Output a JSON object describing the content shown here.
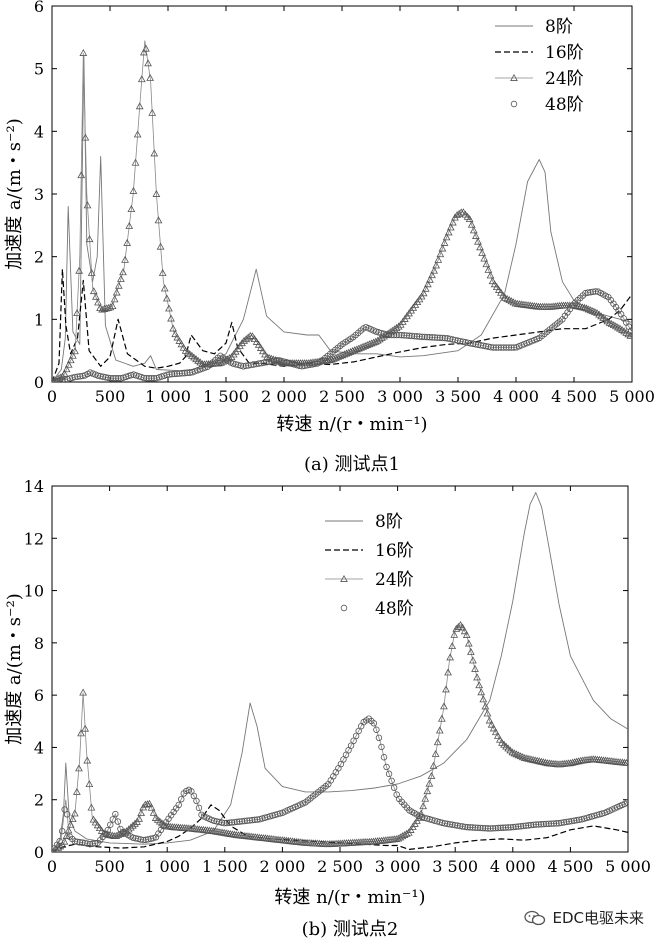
{
  "chart_data": [
    {
      "type": "line",
      "caption": "(a) 测试点1",
      "xlabel": "转速 n/(r・min⁻¹)",
      "ylabel": "加速度 a/(m・s⁻²)",
      "xlim": [
        0,
        5000
      ],
      "ylim": [
        0,
        6
      ],
      "xticks": [
        0,
        500,
        1000,
        1500,
        2000,
        2500,
        3000,
        3500,
        4000,
        4500,
        5000
      ],
      "xtick_labels": [
        "0",
        "500",
        "1 000",
        "1 500",
        "2 000",
        "2 500",
        "3 000",
        "3 500",
        "4 000",
        "4 500",
        "5 000"
      ],
      "yticks": [
        0,
        1,
        2,
        3,
        4,
        5,
        6
      ],
      "ytick_labels": [
        "0",
        "1",
        "2",
        "3",
        "4",
        "5",
        "6"
      ],
      "legend_position": "top-right",
      "series": [
        {
          "name": "8阶",
          "style": "solid",
          "x": [
            0,
            80,
            115,
            140,
            180,
            240,
            275,
            300,
            350,
            390,
            420,
            460,
            550,
            700,
            800,
            850,
            900,
            1100,
            1300,
            1500,
            1650,
            1760,
            1850,
            2000,
            2200,
            2300,
            2400,
            2600,
            2800,
            3000,
            3200,
            3500,
            3700,
            3900,
            4000,
            4100,
            4200,
            4250,
            4300,
            4400,
            4500,
            4700,
            4900,
            5000
          ],
          "y": [
            0,
            0.2,
            0.7,
            2.8,
            0.8,
            0.6,
            5.2,
            2.2,
            1.6,
            2.0,
            3.6,
            0.9,
            0.35,
            0.25,
            0.3,
            0.42,
            0.2,
            0.18,
            0.22,
            0.45,
            1.0,
            1.8,
            1.05,
            0.8,
            0.75,
            0.75,
            0.5,
            0.45,
            0.45,
            0.4,
            0.42,
            0.5,
            0.75,
            1.4,
            2.2,
            3.2,
            3.55,
            3.35,
            2.4,
            1.6,
            1.3,
            1.1,
            1.0,
            0.95
          ]
        },
        {
          "name": "16阶",
          "style": "dashed",
          "x": [
            0,
            60,
            90,
            120,
            160,
            220,
            270,
            320,
            420,
            500,
            570,
            650,
            800,
            900,
            1000,
            1100,
            1150,
            1200,
            1300,
            1400,
            1500,
            1550,
            1600,
            1700,
            1800,
            2000,
            2200,
            2400,
            2600,
            2800,
            3000,
            3200,
            3400,
            3600,
            3800,
            4000,
            4200,
            4400,
            4600,
            4800,
            4900,
            5000
          ],
          "y": [
            0,
            0.3,
            1.8,
            0.9,
            0.45,
            0.7,
            1.62,
            0.5,
            0.25,
            0.4,
            1.0,
            0.45,
            0.25,
            0.22,
            0.25,
            0.3,
            0.4,
            0.75,
            0.5,
            0.45,
            0.62,
            0.95,
            0.55,
            0.3,
            0.3,
            0.25,
            0.3,
            0.28,
            0.32,
            0.4,
            0.48,
            0.55,
            0.6,
            0.62,
            0.7,
            0.75,
            0.8,
            0.85,
            0.85,
            1.0,
            1.15,
            1.4
          ]
        },
        {
          "name": "24阶",
          "style": "triangle",
          "x": [
            0,
            100,
            200,
            240,
            270,
            300,
            350,
            420,
            520,
            620,
            700,
            760,
            800,
            850,
            900,
            960,
            1050,
            1150,
            1300,
            1450,
            1550,
            1650,
            1720,
            1780,
            1850,
            2000,
            2200,
            2400,
            2600,
            2800,
            3000,
            3200,
            3300,
            3400,
            3480,
            3540,
            3600,
            3700,
            3800,
            3900,
            4000,
            4200,
            4300,
            4400,
            4500,
            4600,
            4700,
            4800,
            4900,
            5000
          ],
          "y": [
            0,
            0.1,
            0.5,
            2.0,
            5.25,
            3.0,
            1.5,
            1.15,
            1.2,
            1.8,
            3.0,
            4.5,
            5.45,
            4.8,
            3.0,
            1.6,
            0.8,
            0.5,
            0.28,
            0.3,
            0.4,
            0.65,
            0.75,
            0.6,
            0.4,
            0.3,
            0.3,
            0.35,
            0.5,
            0.65,
            0.9,
            1.4,
            1.8,
            2.3,
            2.65,
            2.72,
            2.6,
            2.1,
            1.6,
            1.35,
            1.25,
            1.2,
            1.2,
            1.22,
            1.22,
            1.18,
            1.1,
            0.95,
            0.85,
            0.72
          ]
        },
        {
          "name": "48阶",
          "style": "circle",
          "x": [
            0,
            100,
            200,
            280,
            330,
            400,
            500,
            600,
            700,
            800,
            900,
            1000,
            1200,
            1350,
            1450,
            1550,
            1650,
            1800,
            1950,
            2050,
            2150,
            2300,
            2400,
            2500,
            2600,
            2700,
            2800,
            2900,
            3000,
            3200,
            3400,
            3600,
            3800,
            4000,
            4200,
            4400,
            4500,
            4600,
            4700,
            4800,
            4900,
            5000
          ],
          "y": [
            0,
            0.03,
            0.08,
            0.1,
            0.15,
            0.1,
            0.06,
            0.06,
            0.12,
            0.06,
            0.06,
            0.12,
            0.15,
            0.25,
            0.42,
            0.3,
            0.25,
            0.3,
            0.35,
            0.3,
            0.25,
            0.3,
            0.45,
            0.6,
            0.72,
            0.88,
            0.8,
            0.75,
            0.75,
            0.72,
            0.7,
            0.62,
            0.55,
            0.55,
            0.7,
            1.0,
            1.25,
            1.42,
            1.45,
            1.35,
            1.1,
            0.8
          ]
        }
      ]
    },
    {
      "type": "line",
      "caption": "(b) 测试点2",
      "xlabel": "转速 n/(r・min⁻¹)",
      "ylabel": "加速度 a/(m・s⁻²)",
      "xlim": [
        0,
        5000
      ],
      "ylim": [
        0,
        14
      ],
      "xticks": [
        0,
        500,
        1000,
        1500,
        2000,
        2500,
        3000,
        3500,
        4000,
        4500,
        5000
      ],
      "xtick_labels": [
        "0",
        "500",
        "1 000",
        "1 500",
        "2 000",
        "2 500",
        "3 000",
        "3 500",
        "4 000",
        "4 500",
        "5 000"
      ],
      "yticks": [
        0,
        2,
        4,
        6,
        8,
        10,
        12,
        14
      ],
      "ytick_labels": [
        "0",
        "2",
        "4",
        "6",
        "8",
        "10",
        "12",
        "14"
      ],
      "legend_position": "top-center",
      "series": [
        {
          "name": "8阶",
          "style": "solid",
          "x": [
            0,
            70,
            100,
            120,
            150,
            200,
            300,
            500,
            800,
            1000,
            1200,
            1400,
            1550,
            1650,
            1720,
            1780,
            1850,
            2000,
            2200,
            2400,
            2600,
            2800,
            3000,
            3200,
            3400,
            3600,
            3800,
            3900,
            4000,
            4100,
            4150,
            4200,
            4250,
            4300,
            4400,
            4500,
            4700,
            4850,
            5000
          ],
          "y": [
            0,
            0.5,
            1.5,
            3.4,
            1.3,
            0.8,
            0.5,
            0.35,
            0.3,
            0.35,
            0.45,
            0.8,
            1.8,
            3.8,
            5.7,
            4.8,
            3.2,
            2.5,
            2.3,
            2.3,
            2.35,
            2.45,
            2.6,
            2.9,
            3.4,
            4.3,
            5.8,
            7.5,
            9.6,
            12.2,
            13.3,
            13.75,
            13.2,
            12.0,
            9.5,
            7.5,
            5.8,
            5.1,
            4.7
          ]
        },
        {
          "name": "16阶",
          "style": "dashed",
          "x": [
            0,
            100,
            200,
            300,
            400,
            600,
            800,
            1000,
            1100,
            1200,
            1300,
            1380,
            1450,
            1550,
            1700,
            1900,
            2100,
            2300,
            2500,
            2700,
            2900,
            3000,
            3100,
            3300,
            3500,
            3700,
            3900,
            4100,
            4300,
            4500,
            4700,
            4900,
            5000
          ],
          "y": [
            0,
            0.2,
            0.3,
            0.25,
            0.2,
            0.15,
            0.2,
            0.4,
            0.6,
            0.9,
            1.3,
            1.8,
            1.6,
            1.0,
            0.6,
            0.5,
            0.45,
            0.4,
            0.35,
            0.3,
            0.25,
            0.25,
            0.1,
            0.2,
            0.35,
            0.45,
            0.5,
            0.45,
            0.55,
            0.85,
            1.0,
            0.85,
            0.75
          ]
        },
        {
          "name": "24阶",
          "style": "triangle",
          "x": [
            0,
            100,
            200,
            240,
            270,
            300,
            350,
            450,
            550,
            650,
            750,
            800,
            850,
            900,
            980,
            1050,
            1200,
            1400,
            1600,
            1800,
            2000,
            2200,
            2400,
            2600,
            2800,
            3000,
            3100,
            3200,
            3300,
            3400,
            3450,
            3500,
            3550,
            3600,
            3700,
            3800,
            3900,
            4000,
            4100,
            4200,
            4300,
            4400,
            4500,
            4600,
            4700,
            4800,
            4900,
            5000
          ],
          "y": [
            0,
            0.3,
            1.5,
            3.5,
            6.1,
            3.8,
            1.3,
            0.7,
            0.6,
            0.8,
            1.2,
            1.8,
            1.85,
            1.3,
            1.0,
            0.95,
            0.9,
            0.8,
            0.65,
            0.55,
            0.45,
            0.35,
            0.3,
            0.35,
            0.4,
            0.5,
            0.75,
            1.4,
            3.0,
            5.5,
            7.3,
            8.5,
            8.7,
            8.3,
            6.5,
            5.0,
            4.2,
            3.8,
            3.6,
            3.5,
            3.4,
            3.35,
            3.4,
            3.5,
            3.55,
            3.5,
            3.45,
            3.4
          ]
        },
        {
          "name": "48阶",
          "style": "circle",
          "x": [
            0,
            80,
            120,
            150,
            200,
            280,
            330,
            400,
            480,
            550,
            600,
            700,
            800,
            900,
            1000,
            1100,
            1150,
            1200,
            1250,
            1300,
            1400,
            1500,
            1600,
            1800,
            2000,
            2200,
            2400,
            2500,
            2600,
            2700,
            2750,
            2800,
            2850,
            2900,
            3000,
            3100,
            3200,
            3400,
            3600,
            3800,
            4000,
            4200,
            4400,
            4600,
            4800,
            5000
          ],
          "y": [
            0,
            0.5,
            2.0,
            0.6,
            0.4,
            0.35,
            0.3,
            0.35,
            0.8,
            1.45,
            0.8,
            0.55,
            0.45,
            0.55,
            1.2,
            1.8,
            2.3,
            2.4,
            2.0,
            1.4,
            1.2,
            1.1,
            1.15,
            1.25,
            1.5,
            1.9,
            2.6,
            3.3,
            4.1,
            4.95,
            5.1,
            4.9,
            4.2,
            3.3,
            2.1,
            1.6,
            1.35,
            1.1,
            0.95,
            0.9,
            0.95,
            1.05,
            1.1,
            1.25,
            1.5,
            1.9
          ]
        }
      ]
    }
  ],
  "watermark": {
    "text": "EDC电驱未来"
  }
}
